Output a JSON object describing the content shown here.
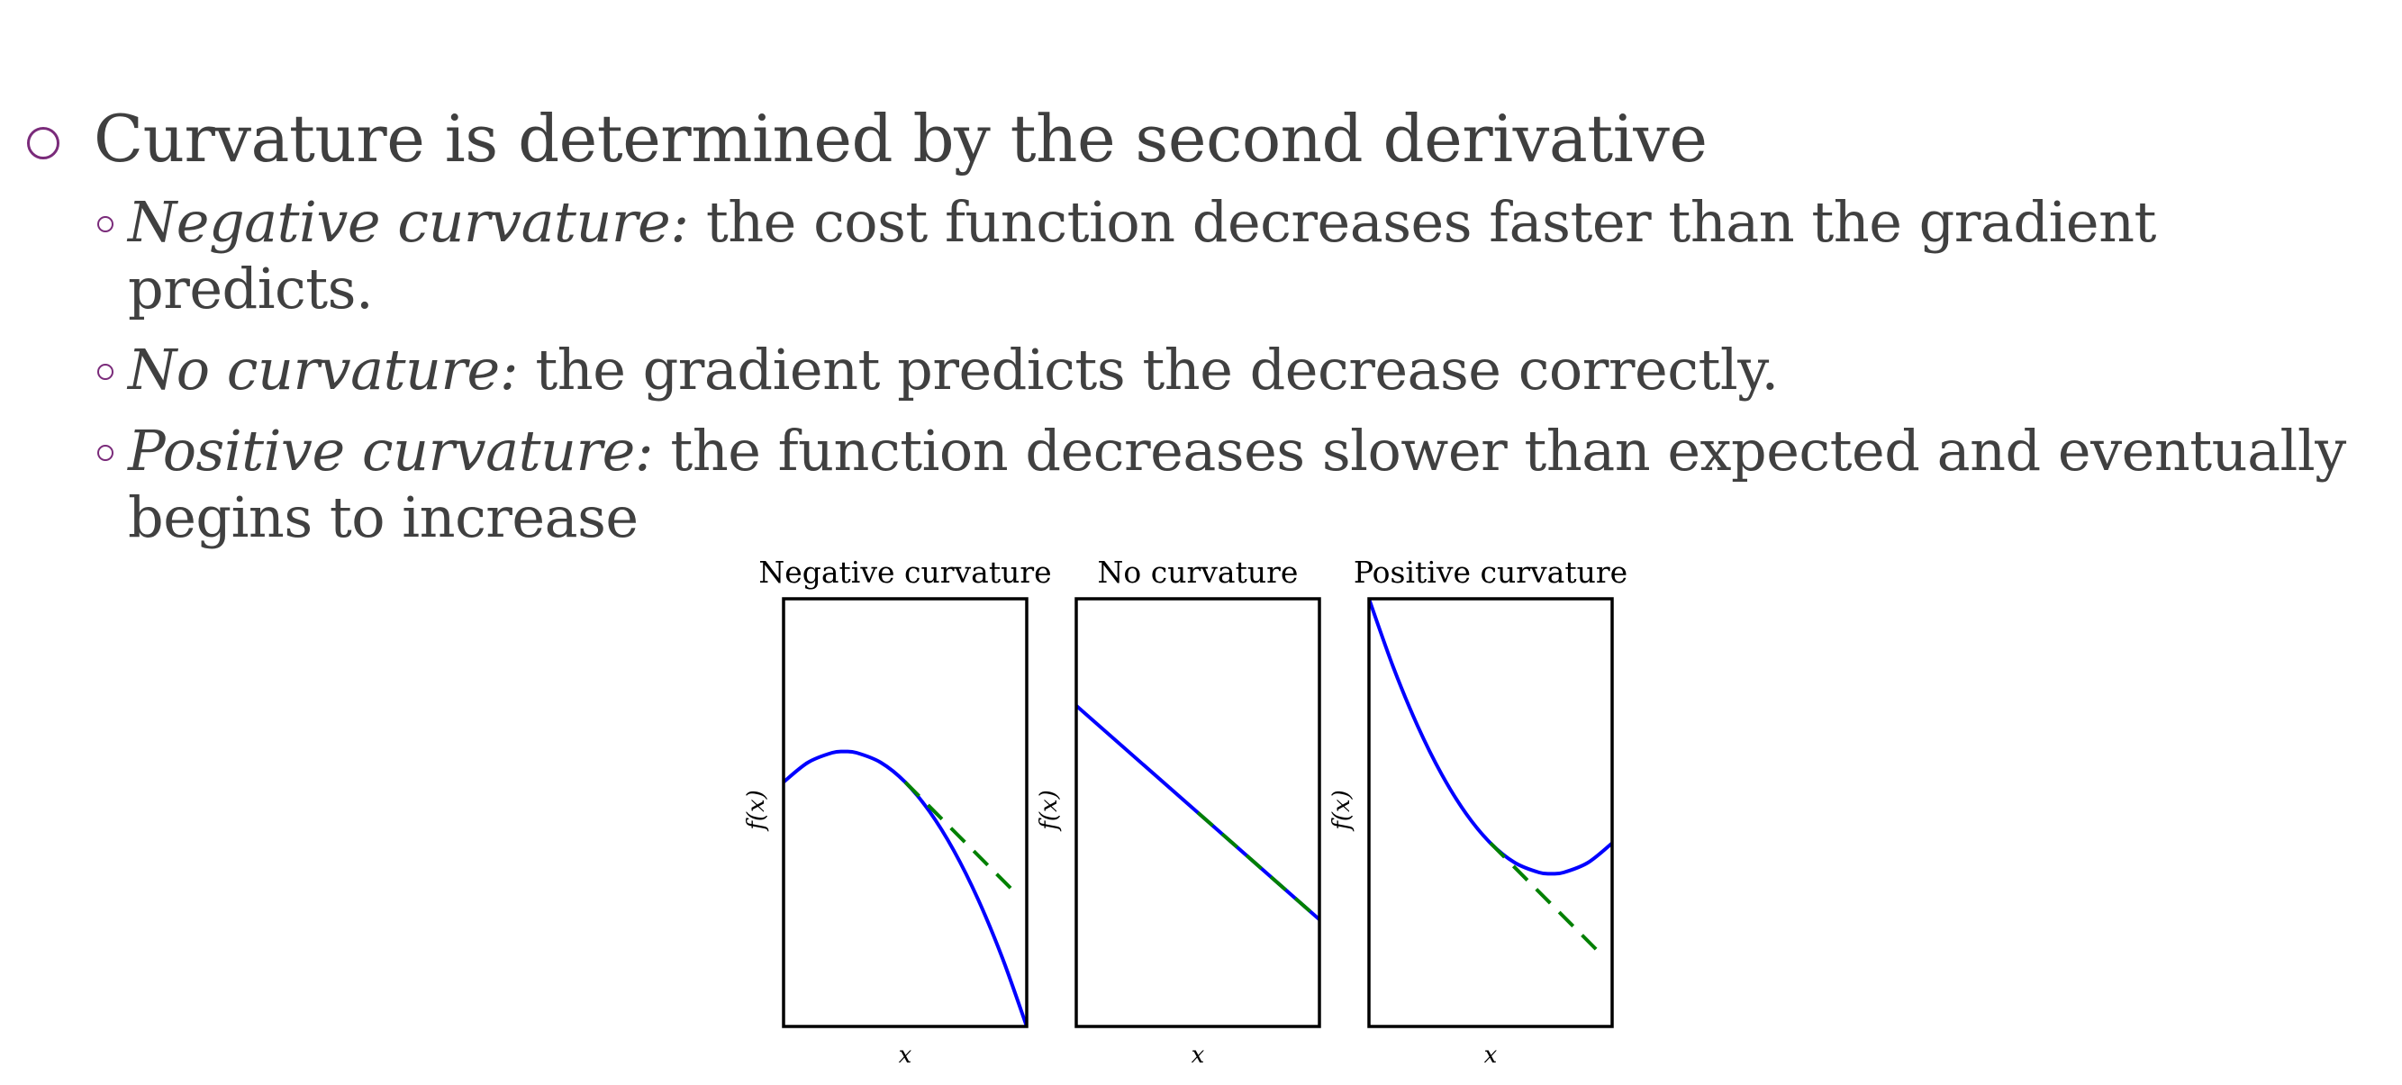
{
  "slide": {
    "main_bullet": "Curvature is determined by the second derivative",
    "sub_bullets": [
      {
        "emphasis": "Negative curvature:",
        "text": " the cost function decreases faster than the gradient predicts."
      },
      {
        "emphasis": "No curvature:",
        "text": " the gradient predicts the decrease correctly."
      },
      {
        "emphasis": "Positive curvature:",
        "text": " the function decreases slower than expected and eventually begins to increase"
      }
    ]
  },
  "colors": {
    "bullet": "#7a2b7a",
    "curve": "#0000ff",
    "tangent": "#008000",
    "text": "#404040"
  },
  "chart_data": [
    {
      "type": "line",
      "title": "Negative curvature",
      "xlabel": "x",
      "ylabel": "f(x)",
      "xlim": [
        -1,
        1
      ],
      "ylim": [
        -2,
        1.5
      ],
      "grid": false,
      "series": [
        {
          "x": [
            -1,
            -0.8,
            -0.6,
            -0.5,
            -0.4,
            -0.2,
            0,
            0.2,
            0.4,
            0.6,
            0.8,
            1
          ],
          "values": [
            0,
            0.16,
            0.24,
            0.25,
            0.24,
            0.16,
            0,
            -0.24,
            -0.56,
            -0.96,
            -1.44,
            -2
          ]
        },
        {
          "x": [
            0,
            0.9
          ],
          "values": [
            0,
            -0.9
          ],
          "style": "dashed"
        }
      ]
    },
    {
      "type": "line",
      "title": "No curvature",
      "xlabel": "x",
      "ylabel": "f(x)",
      "xlim": [
        -1,
        1
      ],
      "ylim": [
        -1.5,
        1.5
      ],
      "grid": false,
      "series": [
        {
          "x": [
            -1,
            1
          ],
          "values": [
            0.75,
            -0.75
          ]
        },
        {
          "x": [
            0,
            1
          ],
          "values": [
            0,
            -0.75
          ],
          "style": "dashed"
        }
      ]
    },
    {
      "type": "line",
      "title": "Positive curvature",
      "xlabel": "x",
      "ylabel": "f(x)",
      "xlim": [
        -1,
        1
      ],
      "ylim": [
        -1.5,
        2
      ],
      "grid": false,
      "series": [
        {
          "x": [
            -1,
            -0.8,
            -0.6,
            -0.4,
            -0.2,
            0,
            0.2,
            0.4,
            0.5,
            0.6,
            0.8,
            1
          ],
          "values": [
            2,
            1.44,
            0.96,
            0.56,
            0.24,
            0,
            -0.16,
            -0.24,
            -0.25,
            -0.24,
            -0.16,
            0
          ]
        },
        {
          "x": [
            0,
            0.9
          ],
          "values": [
            0,
            -0.9
          ],
          "style": "dashed"
        }
      ]
    }
  ]
}
